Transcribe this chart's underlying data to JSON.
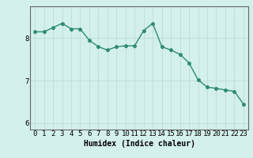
{
  "x": [
    0,
    1,
    2,
    3,
    4,
    5,
    6,
    7,
    8,
    9,
    10,
    11,
    12,
    13,
    14,
    15,
    16,
    17,
    18,
    19,
    20,
    21,
    22,
    23
  ],
  "y": [
    8.15,
    8.15,
    8.25,
    8.35,
    8.22,
    8.22,
    7.95,
    7.8,
    7.72,
    7.8,
    7.82,
    7.82,
    8.18,
    8.35,
    7.8,
    7.72,
    7.62,
    7.42,
    7.02,
    6.85,
    6.82,
    6.78,
    6.75,
    6.45
  ],
  "line_color": "#2e8b74",
  "marker": "o",
  "markersize": 2.5,
  "linewidth": 1.0,
  "xlabel": "Humidex (Indice chaleur)",
  "xlabel_fontsize": 7,
  "yticks": [
    6,
    7,
    8
  ],
  "ylim": [
    5.85,
    8.75
  ],
  "xlim": [
    -0.5,
    23.5
  ],
  "xticks": [
    0,
    1,
    2,
    3,
    4,
    5,
    6,
    7,
    8,
    9,
    10,
    11,
    12,
    13,
    14,
    15,
    16,
    17,
    18,
    19,
    20,
    21,
    22,
    23
  ],
  "bg_color": "#d4f0ec",
  "plot_bg_color": "#d4f0ec",
  "grid_color": "#b8d8d4",
  "tick_fontsize": 6.5,
  "figsize": [
    3.2,
    2.0
  ],
  "dpi": 100
}
